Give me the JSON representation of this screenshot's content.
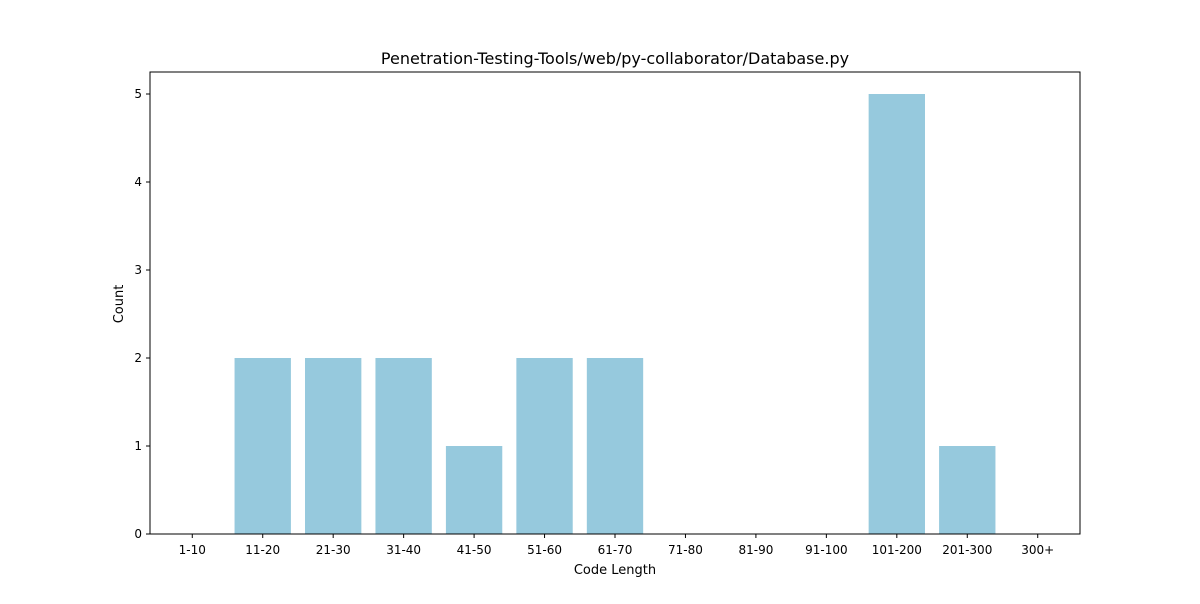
{
  "chart_data": {
    "type": "bar",
    "title": "Penetration-Testing-Tools/web/py-collaborator/Database.py",
    "xlabel": "Code Length",
    "ylabel": "Count",
    "categories": [
      "1-10",
      "11-20",
      "21-30",
      "31-40",
      "41-50",
      "51-60",
      "61-70",
      "71-80",
      "81-90",
      "91-100",
      "101-200",
      "201-300",
      "300+"
    ],
    "values": [
      0,
      2,
      2,
      2,
      1,
      2,
      2,
      0,
      0,
      0,
      5,
      1,
      0
    ],
    "ylim": [
      0,
      5.25
    ],
    "yticks": [
      "0",
      "1",
      "2",
      "3",
      "4",
      "5"
    ],
    "bar_color": "#96c9dd",
    "grid": false,
    "legend": "none"
  }
}
